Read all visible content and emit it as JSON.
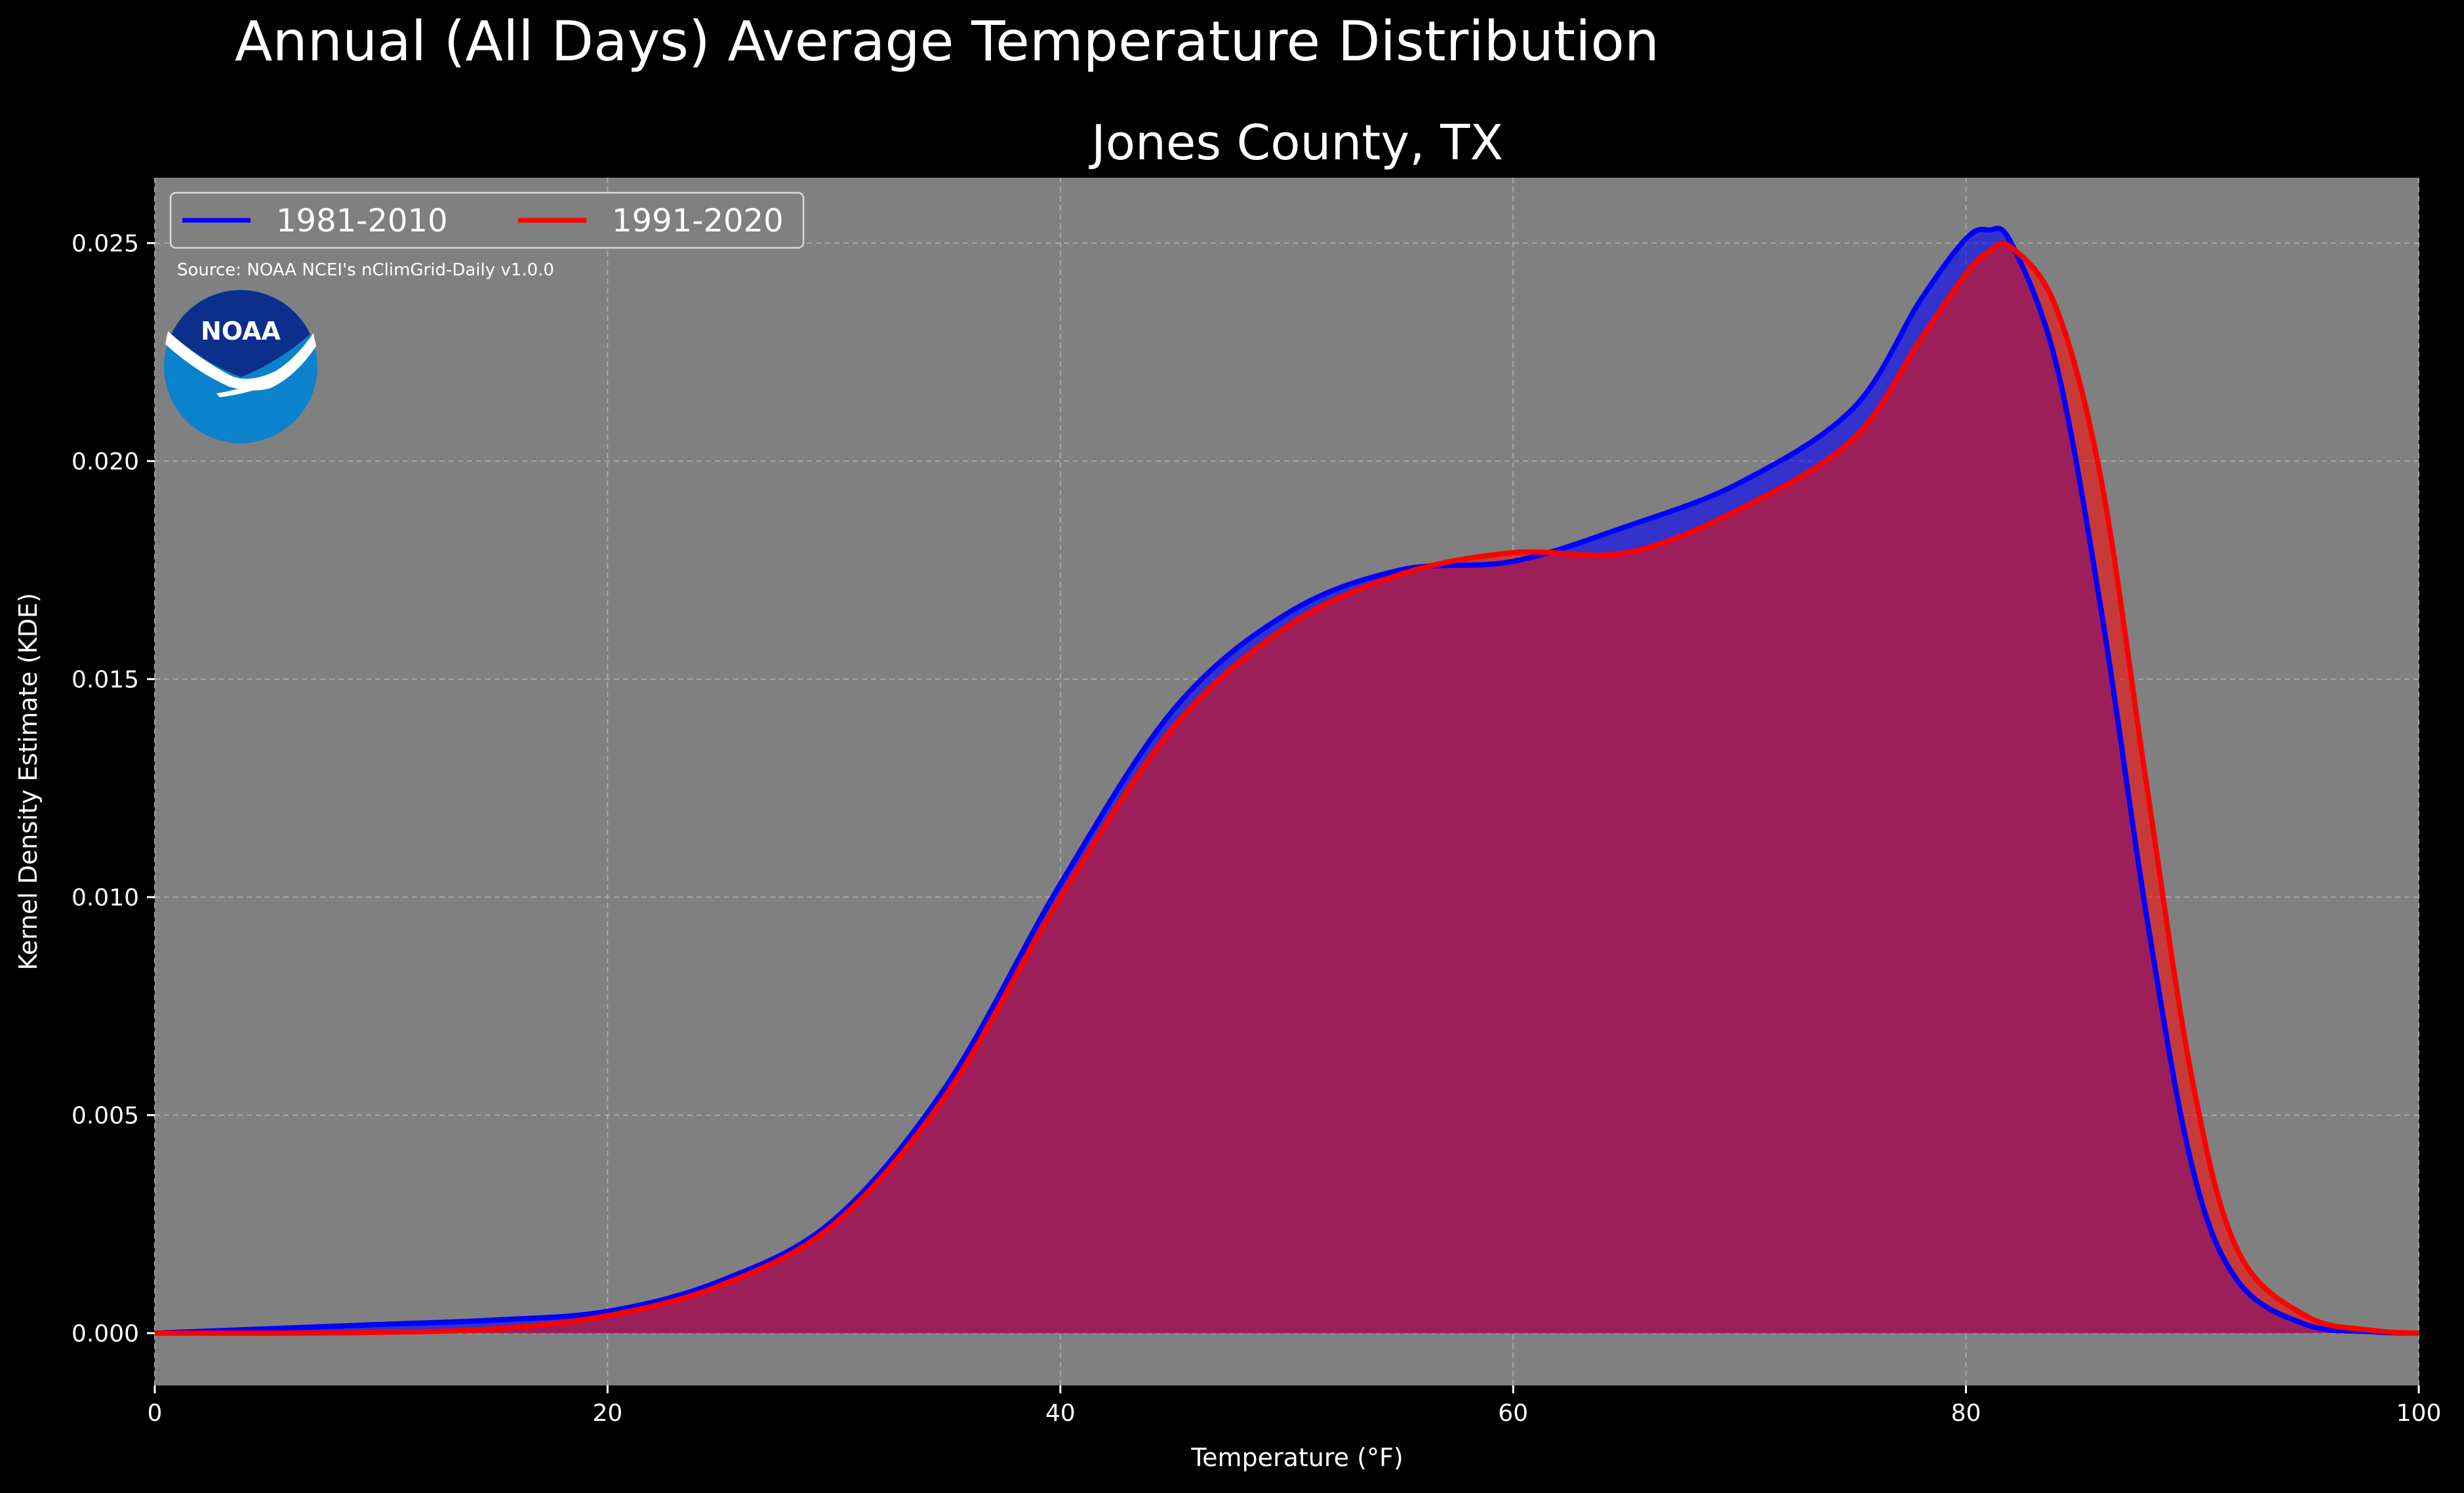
{
  "chart_data": {
    "type": "area",
    "title": "Annual (All Days) Average Temperature Distribution",
    "subtitle": "Jones County, TX",
    "xlabel": "Temperature (°F)",
    "ylabel": "Kernel Density Estimate (KDE)",
    "xlim": [
      0,
      100
    ],
    "ylim": [
      -0.0012,
      0.0265
    ],
    "xticks": [
      0,
      20,
      40,
      60,
      80,
      100
    ],
    "xtick_labels": [
      "0",
      "20",
      "40",
      "60",
      "80",
      "100"
    ],
    "yticks": [
      0.0,
      0.005,
      0.01,
      0.015,
      0.02,
      0.025
    ],
    "ytick_labels": [
      "0.000",
      "0.005",
      "0.010",
      "0.015",
      "0.020",
      "0.025"
    ],
    "grid": true,
    "legend_position": "top-left",
    "annotation": "Source: NOAA NCEI's nClimGrid-Daily v1.0.0",
    "logo_text": "NOAA",
    "colors": {
      "figure_background": "#000000",
      "axes_background": "#808080",
      "series_1": "#0000ff",
      "series_2": "#ff0000",
      "overlap_fill": "#9c1f5a",
      "logo_outer": "#0a83cc",
      "logo_inner": "#0b2f8a"
    },
    "series": [
      {
        "name": "1981-2010",
        "color": "#0000ff",
        "x": [
          0,
          5,
          10,
          15,
          20,
          25,
          30,
          35,
          40,
          45,
          50,
          55,
          60,
          65,
          70,
          75,
          78,
          80,
          81,
          82,
          84,
          86,
          88,
          90,
          92,
          95,
          98,
          100
        ],
        "y": [
          0.0,
          0.0001,
          0.0002,
          0.0003,
          0.0005,
          0.0012,
          0.0026,
          0.0057,
          0.0103,
          0.0143,
          0.0165,
          0.0175,
          0.0177,
          0.0185,
          0.0195,
          0.0212,
          0.0237,
          0.0251,
          0.0253,
          0.025,
          0.0222,
          0.0165,
          0.0095,
          0.0038,
          0.0012,
          0.0002,
          3e-05,
          0.0
        ]
      },
      {
        "name": "1991-2020",
        "color": "#ff0000",
        "x": [
          0,
          5,
          10,
          15,
          20,
          25,
          30,
          35,
          40,
          45,
          50,
          55,
          60,
          65,
          70,
          75,
          78,
          80,
          81,
          82,
          84,
          86,
          88,
          90,
          92,
          95,
          98,
          100
        ],
        "y": [
          0.0,
          0.0,
          2e-05,
          0.0001,
          0.0004,
          0.0011,
          0.0025,
          0.0055,
          0.01,
          0.0139,
          0.0162,
          0.0174,
          0.0179,
          0.0179,
          0.0189,
          0.0205,
          0.0228,
          0.0243,
          0.0248,
          0.0249,
          0.0235,
          0.0195,
          0.0125,
          0.0058,
          0.0019,
          0.0004,
          6e-05,
          0.0
        ]
      }
    ]
  }
}
